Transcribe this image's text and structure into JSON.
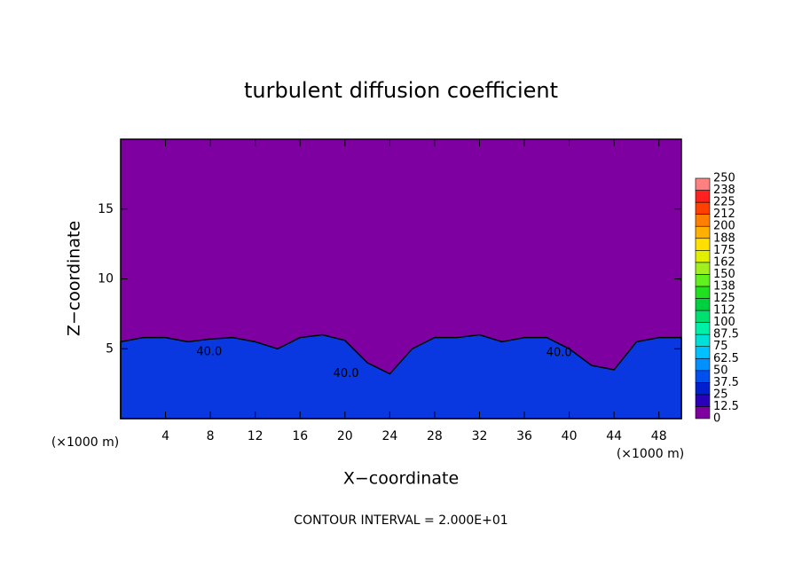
{
  "chart_data": {
    "type": "contour",
    "title": "turbulent diffusion coefficient",
    "x_label": "X−coordinate",
    "y_label": "Z−coordinate",
    "x_unit_label": "(×1000 m)",
    "y_unit_label": "(×1000 m)",
    "footer": "CONTOUR INTERVAL = 2.000E+01",
    "xlim": [
      0,
      50
    ],
    "ylim": [
      0,
      20
    ],
    "xticks": [
      4,
      8,
      12,
      16,
      20,
      24,
      28,
      32,
      36,
      40,
      44,
      48
    ],
    "yticks": [
      5,
      10,
      15
    ],
    "background_color": "#7f00a0",
    "layer_top": {
      "color": "#0a38e0",
      "x": [
        0,
        2,
        4,
        6,
        8,
        10,
        12,
        14,
        16,
        18,
        20,
        22,
        24,
        26,
        28,
        30,
        32,
        34,
        36,
        38,
        40,
        42,
        44,
        46,
        48,
        50
      ],
      "values": [
        5.5,
        5.8,
        5.8,
        5.5,
        5.7,
        5.8,
        5.5,
        5.0,
        5.8,
        6.0,
        5.6,
        4.0,
        3.2,
        5.0,
        5.8,
        5.8,
        6.0,
        5.5,
        5.8,
        5.8,
        5.0,
        3.8,
        3.5,
        5.5,
        5.8,
        5.8
      ]
    },
    "annotations": [
      {
        "text": "40.0",
        "x": 7.9,
        "y": 4.75
      },
      {
        "text": "40.0",
        "x": 20.1,
        "y": 3.2
      },
      {
        "text": "40.0",
        "x": 39.1,
        "y": 4.7
      }
    ],
    "colorbar": {
      "levels": [
        0,
        12.5,
        25,
        37.5,
        50,
        62.5,
        75,
        87.5,
        100,
        {
          "value": 112.5,
          "label": "112"
        },
        125,
        {
          "value": 137.5,
          "label": "138"
        },
        150,
        {
          "value": 162.5,
          "label": "162"
        },
        175,
        {
          "value": 187.5,
          "label": "188"
        },
        200,
        {
          "value": 212.5,
          "label": "212"
        },
        225,
        {
          "value": 237.5,
          "label": "238"
        },
        250
      ],
      "colors": [
        "#7f00a0",
        "#2a00b8",
        "#0020d0",
        "#0050f0",
        "#0090ff",
        "#00c0ff",
        "#00e0d8",
        "#00f0a8",
        "#00e070",
        "#00d040",
        "#20e020",
        "#60f020",
        "#a0f020",
        "#e0f000",
        "#ffe000",
        "#ffb000",
        "#ff8000",
        "#ff4000",
        "#ff2020",
        "#ff8080"
      ]
    }
  }
}
